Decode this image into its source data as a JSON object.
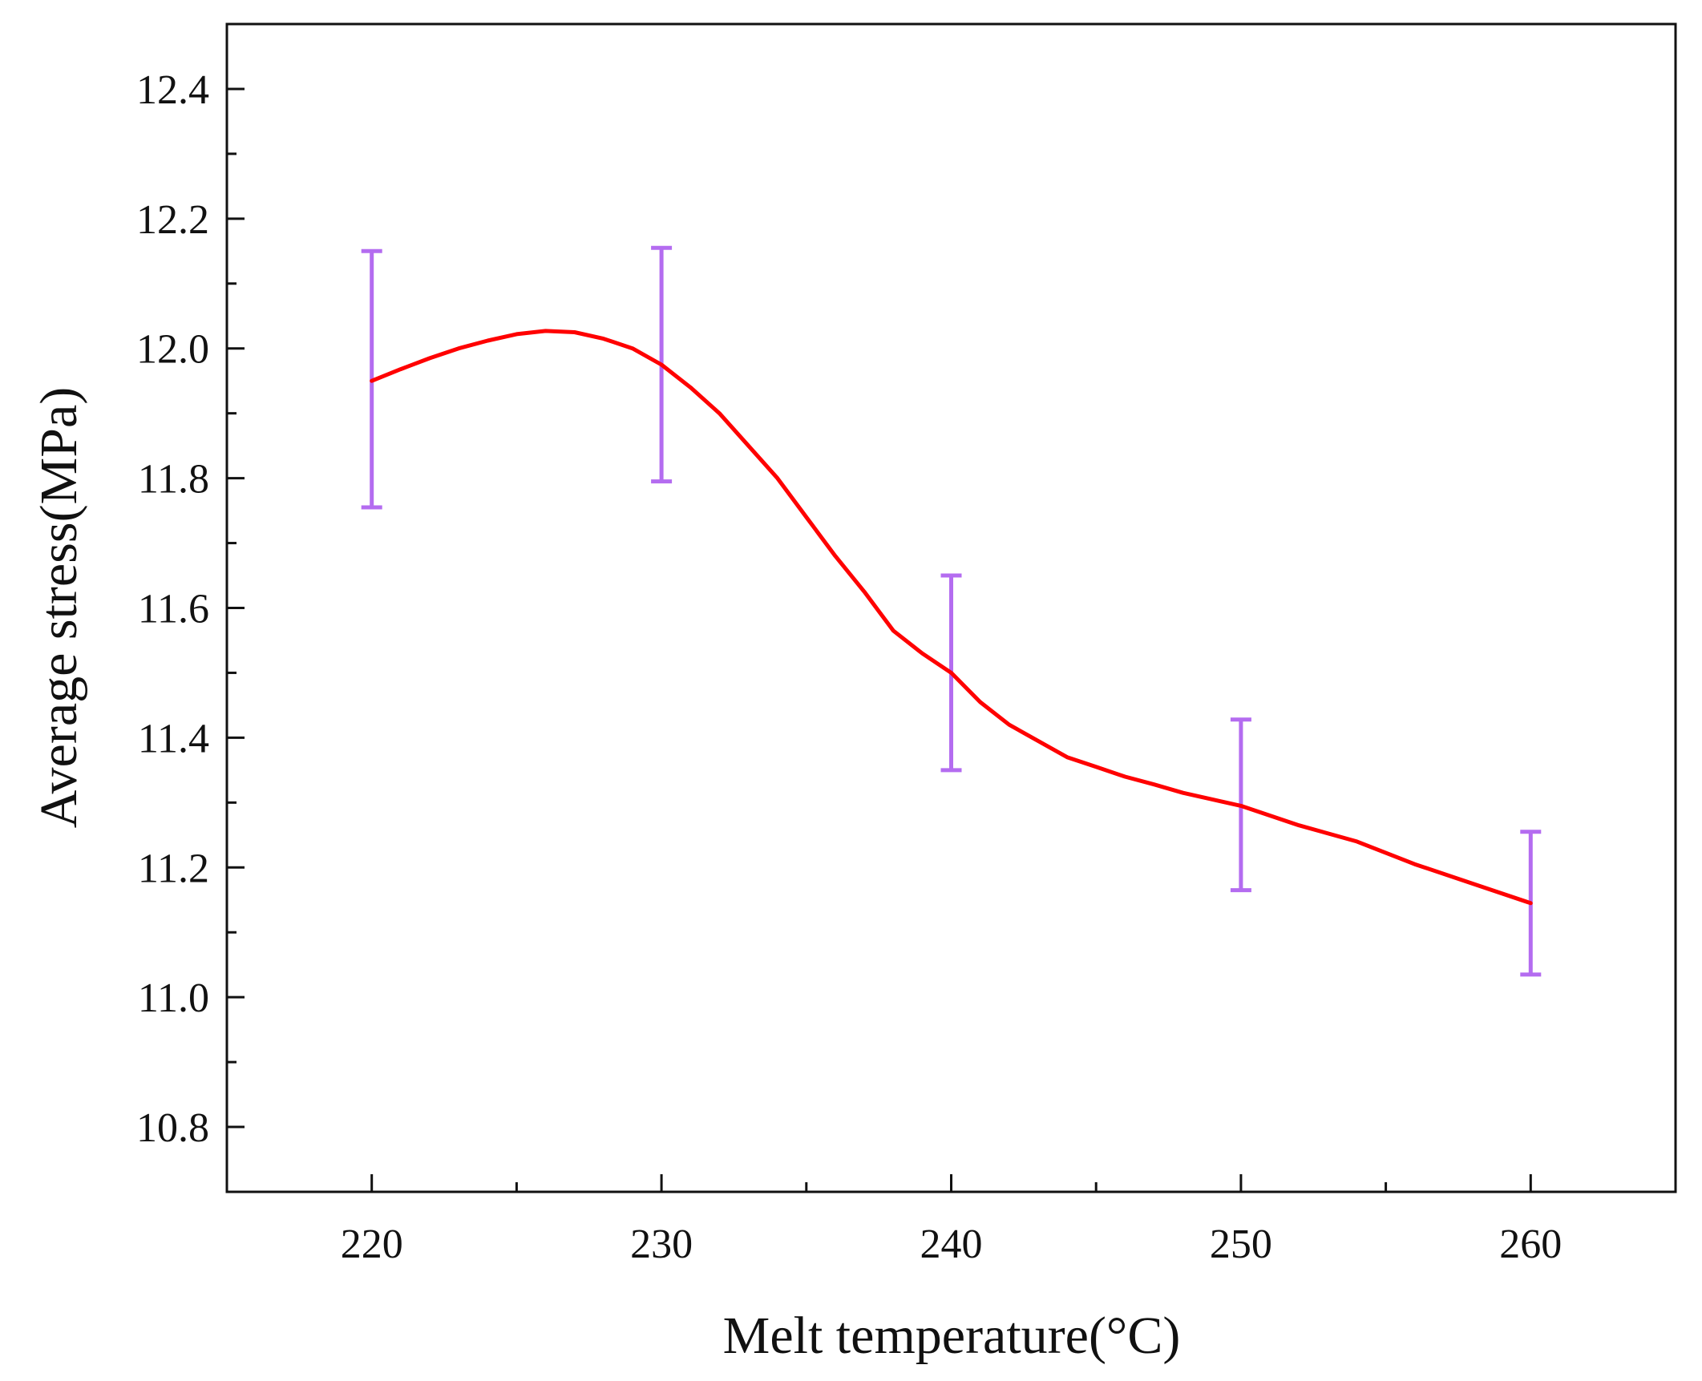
{
  "chart_data": {
    "type": "line",
    "title": "",
    "xlabel": "Melt temperature(°C)",
    "ylabel": "Average stress(MPa)",
    "xlim": [
      215,
      265
    ],
    "ylim": [
      10.7,
      12.5
    ],
    "x_ticks": [
      220,
      230,
      240,
      250,
      260
    ],
    "x_tick_labels": [
      "220",
      "230",
      "240",
      "250",
      "260"
    ],
    "y_ticks": [
      10.8,
      11.0,
      11.2,
      11.4,
      11.6,
      11.8,
      12.0,
      12.2,
      12.4
    ],
    "y_tick_labels": [
      "10.8",
      "11.0",
      "11.2",
      "11.4",
      "11.6",
      "11.8",
      "12.0",
      "12.2",
      "12.4"
    ],
    "grid": false,
    "legend": "none",
    "series": [
      {
        "x": [
          220,
          230,
          240,
          250,
          260
        ],
        "y": [
          11.95,
          11.975,
          11.5,
          11.295,
          11.145
        ],
        "error_lower": [
          11.755,
          11.795,
          11.35,
          11.165,
          11.035
        ],
        "error_upper": [
          12.15,
          12.155,
          11.65,
          11.428,
          11.255
        ],
        "line_color": "#ff0000",
        "error_color": "#b46cf0",
        "curve_x": [
          220,
          221,
          222,
          223,
          224,
          225,
          226,
          227,
          228,
          229,
          230,
          231,
          232,
          233,
          234,
          235,
          236,
          237,
          238,
          239,
          240,
          241,
          242,
          243,
          244,
          245,
          246,
          247,
          248,
          249,
          250,
          252,
          254,
          256,
          258,
          260
        ],
        "curve_y": [
          11.95,
          11.968,
          11.985,
          12.0,
          12.012,
          12.022,
          12.027,
          12.025,
          12.015,
          12.0,
          11.975,
          11.94,
          11.9,
          11.85,
          11.8,
          11.74,
          11.68,
          11.625,
          11.565,
          11.53,
          11.5,
          11.455,
          11.42,
          11.395,
          11.37,
          11.355,
          11.34,
          11.328,
          11.315,
          11.305,
          11.295,
          11.265,
          11.24,
          11.205,
          11.175,
          11.145
        ]
      }
    ]
  }
}
